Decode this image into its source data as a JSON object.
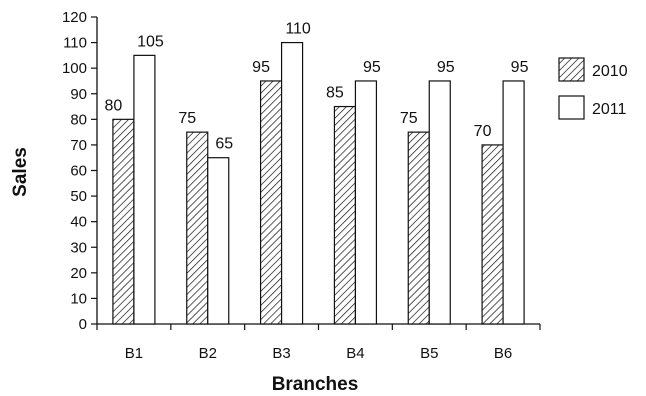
{
  "chart_data": {
    "type": "bar",
    "title": "",
    "xlabel": "Branches",
    "ylabel": "Sales",
    "categories": [
      "B1",
      "B2",
      "B3",
      "B4",
      "B5",
      "B6"
    ],
    "series": [
      {
        "name": "2010",
        "values": [
          80,
          75,
          95,
          85,
          75,
          70
        ],
        "fill": "hatched"
      },
      {
        "name": "2011",
        "values": [
          105,
          65,
          110,
          95,
          95,
          95
        ],
        "fill": "white"
      }
    ],
    "ylim": [
      0,
      120
    ],
    "yticks": [
      0,
      10,
      20,
      30,
      40,
      50,
      60,
      70,
      80,
      90,
      100,
      110,
      120
    ],
    "grid": false,
    "legend": "right",
    "colors": {
      "stroke": "#111111",
      "background": "#ffffff"
    }
  }
}
